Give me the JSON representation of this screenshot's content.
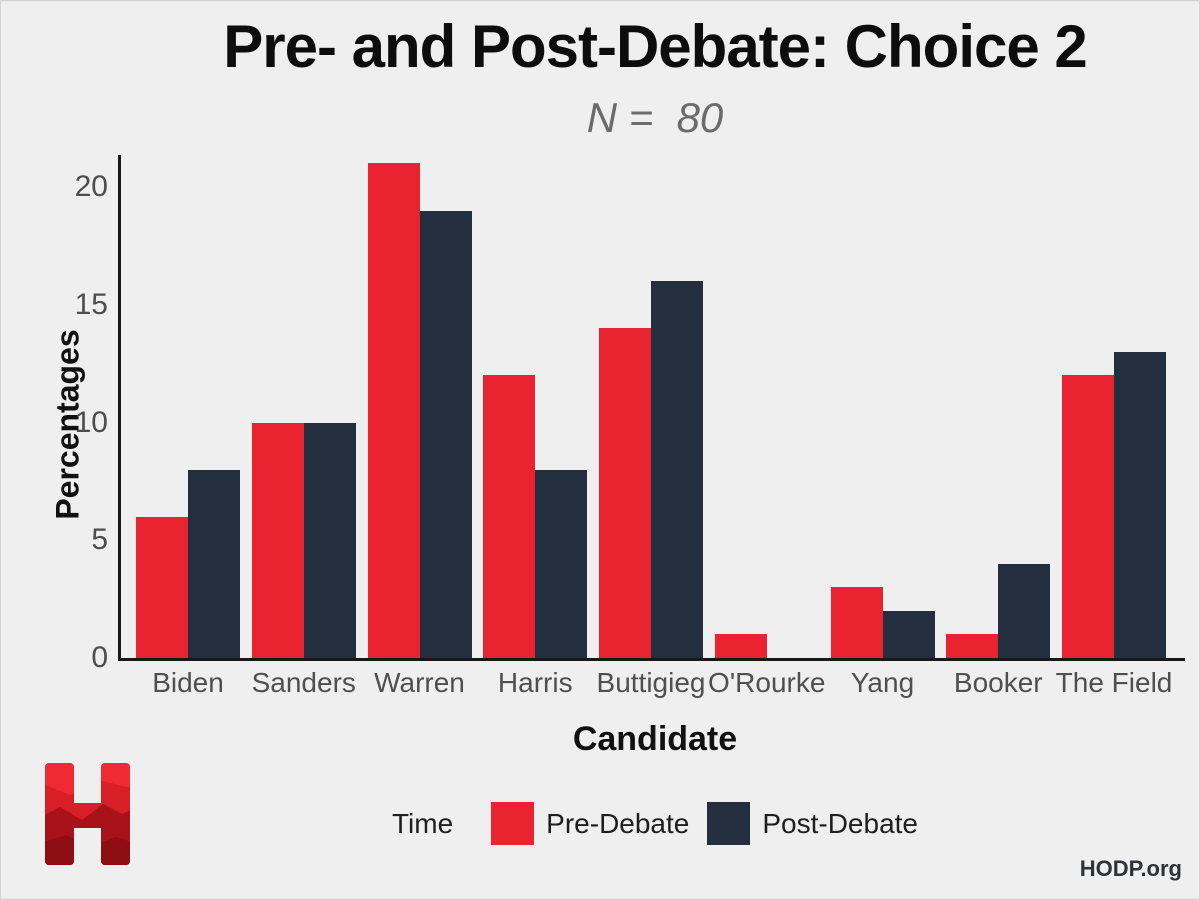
{
  "page": {
    "background": "#efefef"
  },
  "chart_data": {
    "type": "bar",
    "title": "Pre- and Post-Debate: Choice 2",
    "subtitle": "N =  80",
    "xlabel": "Candidate",
    "ylabel": "Percentages",
    "categories": [
      "Biden",
      "Sanders",
      "Warren",
      "Harris",
      "Buttigieg",
      "O'Rourke",
      "Yang",
      "Booker",
      "The Field"
    ],
    "series": [
      {
        "name": "Pre-Debate",
        "color": "#e92430",
        "values": [
          6,
          10,
          21,
          12,
          14,
          1,
          3,
          1,
          12
        ]
      },
      {
        "name": "Post-Debate",
        "color": "#232f3e",
        "values": [
          8,
          10,
          19,
          8,
          16,
          0,
          2,
          4,
          13
        ]
      }
    ],
    "yticks": [
      0,
      5,
      10,
      15,
      20
    ],
    "ylim": [
      0,
      21.4
    ],
    "grid": false,
    "legend_title": "Time",
    "legend_position": "bottom",
    "axis_color": "#181818",
    "tick_label_color": "#4d4d4d"
  },
  "footer": {
    "brand": "HODP.org"
  },
  "logo": {
    "name": "HODP letter H logo",
    "base_color": "#d81e26",
    "dark_facet": "#a9121a",
    "darker_facet": "#8e0e13",
    "highlight": "#ef2a33"
  }
}
